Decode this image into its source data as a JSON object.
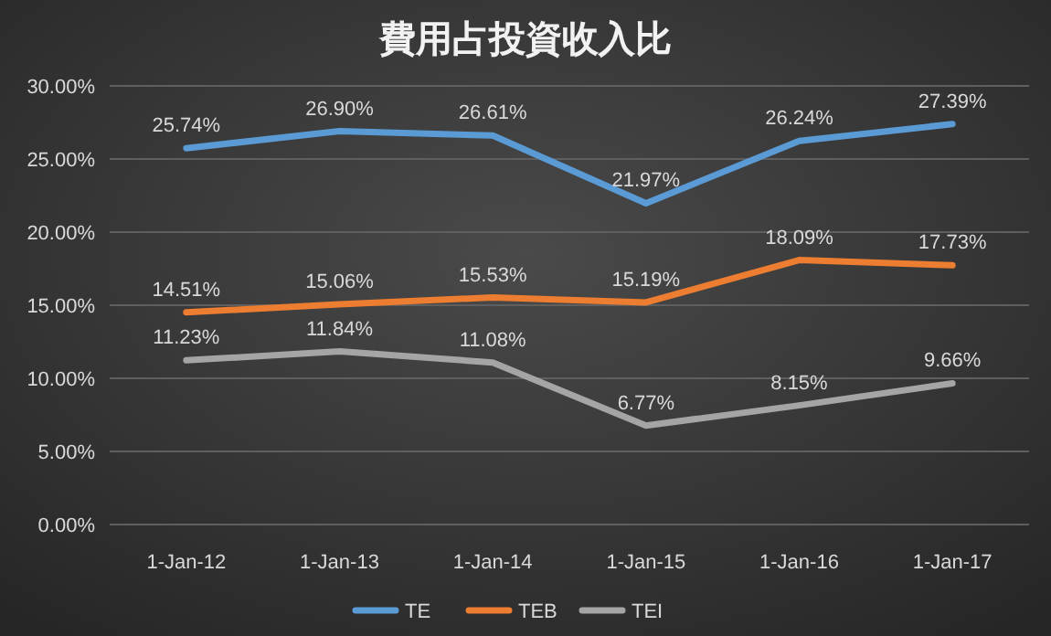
{
  "chart_data": {
    "type": "line",
    "title": "費用占投資收入比",
    "categories": [
      "1-Jan-12",
      "1-Jan-13",
      "1-Jan-14",
      "1-Jan-15",
      "1-Jan-16",
      "1-Jan-17"
    ],
    "series": [
      {
        "name": "TE",
        "color": "#5b9bd5",
        "values": [
          25.74,
          26.9,
          26.61,
          21.97,
          26.24,
          27.39
        ],
        "value_labels": [
          "25.74%",
          "26.90%",
          "26.61%",
          "21.97%",
          "26.24%",
          "27.39%"
        ]
      },
      {
        "name": "TEB",
        "color": "#ed7d31",
        "values": [
          14.51,
          15.06,
          15.53,
          15.19,
          18.09,
          17.73
        ],
        "value_labels": [
          "14.51%",
          "15.06%",
          "15.53%",
          "15.19%",
          "18.09%",
          "17.73%"
        ]
      },
      {
        "name": "TEI",
        "color": "#a5a5a5",
        "values": [
          11.23,
          11.84,
          11.08,
          6.77,
          8.15,
          9.66
        ],
        "value_labels": [
          "11.23%",
          "11.84%",
          "11.08%",
          "6.77%",
          "8.15%",
          "9.66%"
        ]
      }
    ],
    "ylim": [
      0,
      30
    ],
    "yticks": [
      {
        "value": 0,
        "label": "0.00%"
      },
      {
        "value": 5,
        "label": "5.00%"
      },
      {
        "value": 10,
        "label": "10.00%"
      },
      {
        "value": 15,
        "label": "15.00%"
      },
      {
        "value": 20,
        "label": "20.00%"
      },
      {
        "value": 25,
        "label": "25.00%"
      },
      {
        "value": 30,
        "label": "30.00%"
      }
    ],
    "grid": "y",
    "legend": "bottom",
    "marker": "none",
    "line_style": "solid"
  }
}
